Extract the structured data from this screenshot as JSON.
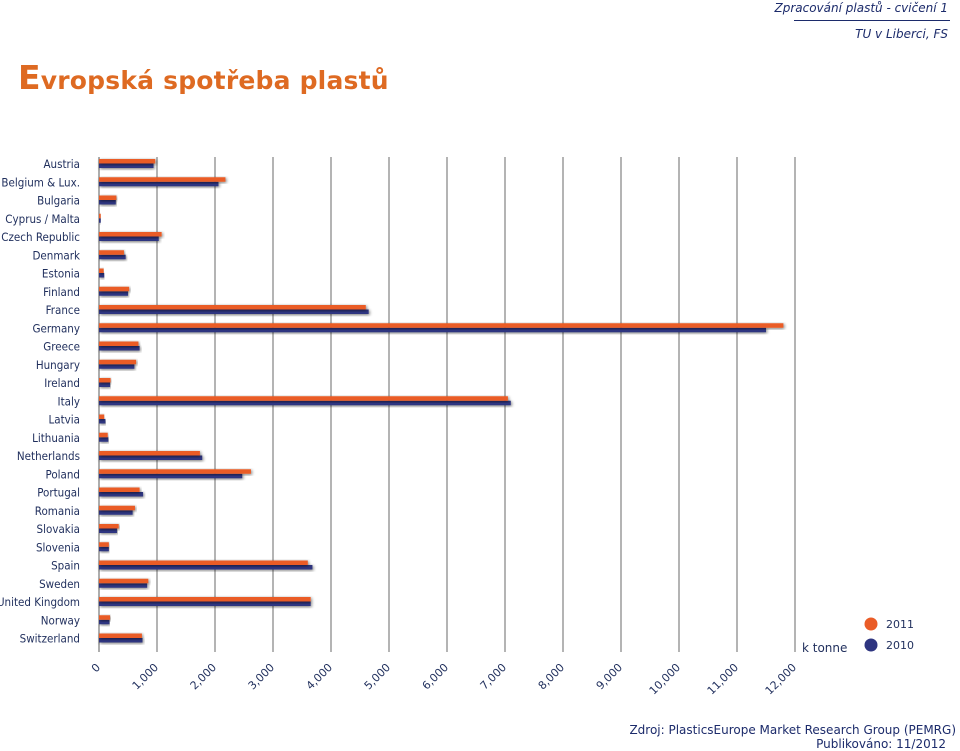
{
  "header": {
    "course": "Zpracování plastů - cvičení 1",
    "institution": "TU v Liberci, FS"
  },
  "page_title": "Evropská spotřeba plastů",
  "footer": {
    "source": "Zdroj: PlasticsEurope  Market Research Group (PEMRG)",
    "published": "Publikováno: 11/2012"
  },
  "colors": {
    "series_2011": "#ea5c27",
    "series_2010": "#2e3580",
    "grid": "#5a5a5a",
    "text": "#1f2e5c"
  },
  "chart_data": {
    "type": "bar",
    "orientation": "horizontal",
    "unit_label": "k tonne",
    "categories": [
      "Austria",
      "Belgium & Lux.",
      "Bulgaria",
      "Cyprus / Malta",
      "Czech Republic",
      "Denmark",
      "Estonia",
      "Finland",
      "France",
      "Germany",
      "Greece",
      "Hungary",
      "Ireland",
      "Italy",
      "Latvia",
      "Lithuania",
      "Netherlands",
      "Poland",
      "Portugal",
      "Romania",
      "Slovakia",
      "Slovenia",
      "Spain",
      "Sweden",
      "United Kingdom",
      "Norway",
      "Switzerland"
    ],
    "series": [
      {
        "name": "2011",
        "values": [
          970,
          2180,
          300,
          30,
          1080,
          430,
          80,
          520,
          4600,
          11800,
          680,
          640,
          200,
          7050,
          90,
          150,
          1740,
          2620,
          700,
          620,
          340,
          170,
          3600,
          850,
          3650,
          190,
          740
        ]
      },
      {
        "name": "2010",
        "values": [
          940,
          2060,
          290,
          30,
          1030,
          460,
          90,
          500,
          4650,
          11500,
          700,
          610,
          190,
          7100,
          110,
          160,
          1780,
          2470,
          760,
          580,
          310,
          170,
          3680,
          830,
          3650,
          180,
          750
        ]
      }
    ],
    "xlim": [
      0,
      12000
    ],
    "xticks": [
      "0",
      "1,000",
      "2,000",
      "3,000",
      "4,000",
      "5,000",
      "6,000",
      "7,000",
      "8,000",
      "9,000",
      "10,000",
      "11,000",
      "12,000"
    ],
    "grid": "vertical",
    "legend_position": "bottom-right"
  }
}
